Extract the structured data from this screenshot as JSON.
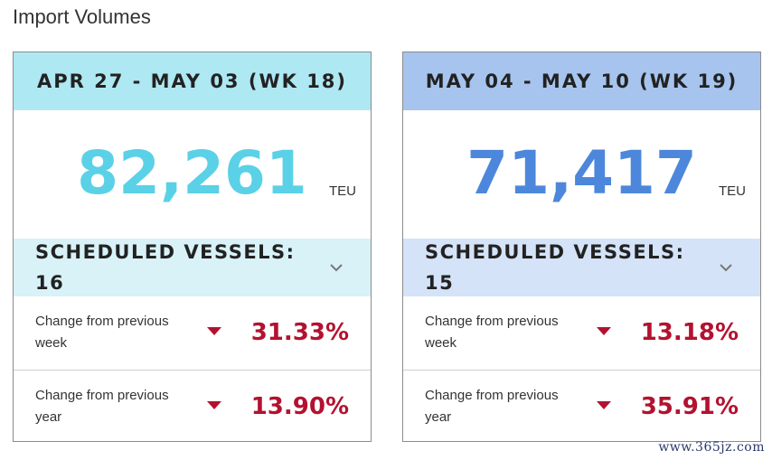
{
  "page": {
    "title": "Import Volumes"
  },
  "colors": {
    "card1_header": "#aee8f2",
    "card2_header": "#a6c4ee",
    "card1_number": "#5ad1e6",
    "card2_number": "#4d87db",
    "decline": "#b3122f"
  },
  "cards": [
    {
      "header": "APR 27 - MAY 03 (WK 18)",
      "volume": "82,261",
      "unit": "TEU",
      "vessels_label": "SCHEDULED VESSELS:",
      "vessels_count": "16",
      "expand_icon": "chevron-down-icon",
      "stats": [
        {
          "label": "Change from previous week",
          "direction": "down",
          "value": "31.33%"
        },
        {
          "label": "Change from previous year",
          "direction": "down",
          "value": "13.90%"
        }
      ]
    },
    {
      "header": "MAY 04 - MAY 10 (WK 19)",
      "volume": "71,417",
      "unit": "TEU",
      "vessels_label": "SCHEDULED VESSELS:",
      "vessels_count": "15",
      "expand_icon": "chevron-down-icon",
      "stats": [
        {
          "label": "Change from previous week",
          "direction": "down",
          "value": "13.18%"
        },
        {
          "label": "Change from previous year",
          "direction": "down",
          "value": "35.91%"
        }
      ]
    }
  ],
  "watermark": "www.365jz.com"
}
